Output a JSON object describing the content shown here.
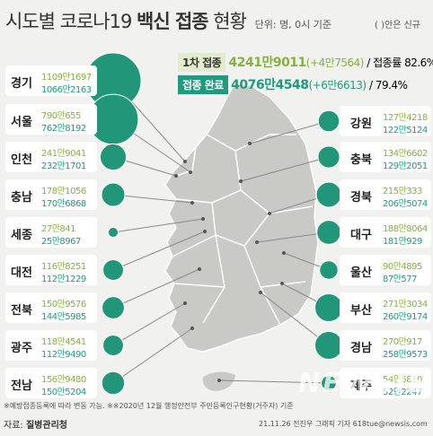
{
  "title": {
    "prefix": "시도별 코로나19",
    "bold": "백신 접종",
    "suffix": "현황",
    "unit": "단위: 명, 0시 기준"
  },
  "note": "( )안은 신규",
  "summary": {
    "first": {
      "label": "1차 접종",
      "value": "4241만9011",
      "new": "(+4만7564)",
      "rate_label": "/ 접종률",
      "rate": "82.6%",
      "color": "#86b13d"
    },
    "full": {
      "label": "접종 완료",
      "value": "4076만4548",
      "new": "(+6만6613)",
      "rate_sep": "/",
      "rate": "79.4%",
      "color": "#1e9b7f"
    }
  },
  "colors": {
    "first": "#86b13d",
    "full": "#1e9b7f",
    "bubble": "#229679",
    "map": "#c9c9c5",
    "line": "#8a8a8a"
  },
  "regions_left": [
    {
      "name": "경기",
      "first": "1109만1697",
      "full": "1066만2163",
      "size": 1.0
    },
    {
      "name": "서울",
      "first": "790만655",
      "full": "762만8192",
      "size": 0.9
    },
    {
      "name": "인천",
      "first": "241만9041",
      "full": "232만1701",
      "size": 0.47
    },
    {
      "name": "충남",
      "first": "178만1056",
      "full": "170만6868",
      "size": 0.42
    },
    {
      "name": "세종",
      "first": "27만841",
      "full": "25만8967",
      "size": 0.18
    },
    {
      "name": "대전",
      "first": "116만8251",
      "full": "112만1229",
      "size": 0.37
    },
    {
      "name": "전북",
      "first": "150만9576",
      "full": "144만5985",
      "size": 0.4
    },
    {
      "name": "광주",
      "first": "118만4541",
      "full": "112만9490",
      "size": 0.37
    },
    {
      "name": "전남",
      "first": "156만9480",
      "full": "150만5204",
      "size": 0.41
    }
  ],
  "regions_right": [
    {
      "name": "강원",
      "first": "127만4218",
      "full": "122만5124",
      "size": 0.38
    },
    {
      "name": "충북",
      "first": "134만6602",
      "full": "129만2051",
      "size": 0.39
    },
    {
      "name": "경북",
      "first": "215만333",
      "full": "206만5074",
      "size": 0.45
    },
    {
      "name": "대구",
      "first": "188만8064",
      "full": "181만929",
      "size": 0.43
    },
    {
      "name": "울산",
      "first": "90만4895",
      "full": "87만577",
      "size": 0.33
    },
    {
      "name": "부산",
      "first": "271만3034",
      "full": "260만9174",
      "size": 0.5
    },
    {
      "name": "경남",
      "first": "270만917",
      "full": "258만9573",
      "size": 0.5
    },
    {
      "name": "제주",
      "first": "54만5810",
      "full": "52만2247",
      "size": 0.27
    }
  ],
  "footnote": "※예방접종등록에 따라 변동 가능. ※※2020년 12월 행정안전부 주민등록인구현황(거주자) 기준",
  "source": {
    "label": "자료:",
    "org": "질병관리청"
  },
  "credit": "21.11.26 전진우 그래픽 기자 618tue@newsis.com",
  "watermark": "NEWSIS"
}
